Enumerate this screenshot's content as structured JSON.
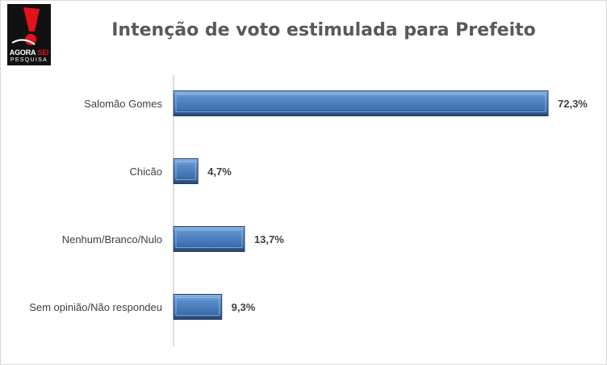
{
  "logo": {
    "line1_a": "AGORA ",
    "line1_b": "SEI",
    "line2": "PESQUISA"
  },
  "chart_data": {
    "type": "bar",
    "orientation": "horizontal",
    "title": "Intenção de voto estimulada para Prefeito",
    "categories": [
      "Salomão Gomes",
      "Chicão",
      "Nenhum/Branco/Nulo",
      "Sem opinião/Não respondeu"
    ],
    "values": [
      72.3,
      4.7,
      13.7,
      9.3
    ],
    "value_labels": [
      "72,3%",
      "4,7%",
      "13,7%",
      "9,3%"
    ],
    "xlim": [
      0,
      72.3
    ],
    "grid": false,
    "legend": "none",
    "colors": {
      "bar": "#4f81bd",
      "bar_dark": "#2c4d75",
      "bar_light": "#8eb4e3",
      "text": "#404040",
      "title": "#595959"
    }
  }
}
